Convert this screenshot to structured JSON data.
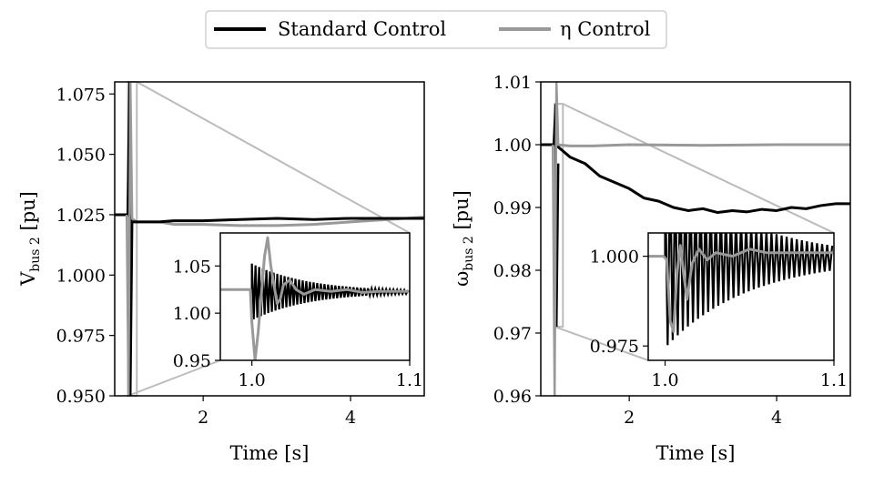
{
  "legend": {
    "entries": [
      {
        "label": "Standard Control",
        "color": "#000000"
      },
      {
        "label": "η Control",
        "color": "#999999"
      }
    ],
    "placement": "top-center"
  },
  "colors": {
    "standard": "#000000",
    "eta": "#999999",
    "zoom_box": "#bbbbbb"
  },
  "chart_data": [
    {
      "type": "line",
      "xlabel": "Time [s]",
      "ylabel_main": "V",
      "ylabel_sub": "bus 2",
      "ylabel_unit": "[pu]",
      "xlim": [
        0.8,
        5.0
      ],
      "ylim": [
        0.95,
        1.08
      ],
      "x_ticks": [
        2,
        4
      ],
      "x_tick_labels": [
        "2",
        "4"
      ],
      "y_ticks": [
        0.95,
        0.975,
        1.0,
        1.025,
        1.05,
        1.075
      ],
      "y_tick_labels": [
        "0.950",
        "0.975",
        "1.000",
        "1.025",
        "1.050",
        "1.075"
      ],
      "series": [
        {
          "name": "Standard Control",
          "x": [
            0.8,
            1.0,
            1.02,
            1.05,
            1.1,
            1.2,
            1.4,
            1.6,
            2.0,
            2.5,
            3.0,
            3.5,
            4.0,
            4.5,
            5.0
          ],
          "y": [
            1.025,
            1.025,
            1.022,
            1.022,
            1.022,
            1.022,
            1.022,
            1.0225,
            1.0225,
            1.023,
            1.0235,
            1.023,
            1.0235,
            1.0235,
            1.0235
          ]
        },
        {
          "name": "η Control",
          "x": [
            0.8,
            1.0,
            1.02,
            1.05,
            1.1,
            1.2,
            1.4,
            1.6,
            2.0,
            2.5,
            3.0,
            3.5,
            4.0,
            4.5,
            5.0
          ],
          "y": [
            1.025,
            1.025,
            1.022,
            1.023,
            1.022,
            1.022,
            1.022,
            1.021,
            1.021,
            1.0205,
            1.0205,
            1.021,
            1.022,
            1.023,
            1.024
          ]
        }
      ],
      "inset": {
        "xlim": [
          0.98,
          1.1
        ],
        "ylim": [
          0.95,
          1.085
        ],
        "x_ticks": [
          1.0,
          1.1
        ],
        "x_tick_labels": [
          "1.0",
          "1.1"
        ],
        "y_ticks": [
          0.95,
          1.0,
          1.05
        ],
        "y_tick_labels": [
          "0.95",
          "1.00",
          "1.05"
        ],
        "standard": {
          "steady": 1.0225,
          "initial_amp": 0.03,
          "decay": 28,
          "period": 0.0023
        },
        "eta": {
          "x": [
            0.98,
            0.999,
            1.0,
            1.002,
            1.004,
            1.006,
            1.008,
            1.01,
            1.012,
            1.014,
            1.016,
            1.018,
            1.02,
            1.024,
            1.028,
            1.033,
            1.04,
            1.05,
            1.06,
            1.07,
            1.08,
            1.1
          ],
          "y": [
            1.025,
            1.025,
            0.99,
            0.95,
            0.98,
            1.02,
            1.06,
            1.08,
            1.05,
            1.03,
            1.01,
            1.015,
            1.03,
            1.035,
            1.025,
            1.02,
            1.025,
            1.023,
            1.025,
            1.022,
            1.023,
            1.023
          ]
        }
      }
    },
    {
      "type": "line",
      "xlabel": "Time [s]",
      "ylabel_main": "ω",
      "ylabel_sub": "bus 2",
      "ylabel_unit": "[pu]",
      "xlim": [
        0.8,
        5.0
      ],
      "ylim": [
        0.96,
        1.01
      ],
      "x_ticks": [
        2,
        4
      ],
      "x_tick_labels": [
        "2",
        "4"
      ],
      "y_ticks": [
        0.96,
        0.97,
        0.98,
        0.99,
        1.0,
        1.01
      ],
      "y_tick_labels": [
        "0.96",
        "0.97",
        "0.98",
        "0.99",
        "1.00",
        "1.01"
      ],
      "series": [
        {
          "name": "Standard Control",
          "x": [
            0.8,
            1.0,
            1.2,
            1.4,
            1.6,
            1.8,
            2.0,
            2.2,
            2.4,
            2.6,
            2.8,
            3.0,
            3.2,
            3.4,
            3.6,
            3.8,
            4.0,
            4.2,
            4.4,
            4.6,
            4.8,
            5.0
          ],
          "y": [
            1.0,
            1.0,
            0.998,
            0.997,
            0.995,
            0.994,
            0.993,
            0.9915,
            0.991,
            0.99,
            0.9895,
            0.9898,
            0.9892,
            0.9895,
            0.9893,
            0.9897,
            0.9895,
            0.99,
            0.9898,
            0.9903,
            0.9906,
            0.9906
          ]
        },
        {
          "name": "η Control",
          "x": [
            0.8,
            1.0,
            1.2,
            1.5,
            2.0,
            3.0,
            4.0,
            5.0
          ],
          "y": [
            1.0,
            1.0,
            0.9998,
            0.9998,
            1.0,
            0.9999,
            1.0,
            1.0
          ]
        }
      ],
      "inset": {
        "xlim": [
          0.99,
          1.1
        ],
        "ylim": [
          0.971,
          1.0065
        ],
        "x_ticks": [
          1.0,
          1.1
        ],
        "x_tick_labels": [
          "1.0",
          "1.1"
        ],
        "y_ticks": [
          0.975,
          1.0
        ],
        "y_tick_labels": [
          "0.975",
          "1.000"
        ],
        "standard": {
          "steady": 0.9995,
          "initial_amp": 0.025,
          "decay": 20,
          "period": 0.003
        },
        "eta": {
          "x": [
            0.99,
            0.999,
            1.001,
            1.003,
            1.005,
            1.007,
            1.009,
            1.011,
            1.013,
            1.016,
            1.02,
            1.025,
            1.03,
            1.04,
            1.05,
            1.06,
            1.08,
            1.1
          ],
          "y": [
            1.0,
            1.0,
            0.999,
            0.982,
            0.979,
            0.995,
            1.003,
            0.995,
            0.988,
            0.998,
            1.002,
            0.999,
            1.001,
            1.0,
            1.002,
            1.001,
            1.001,
            1.001
          ]
        }
      }
    }
  ]
}
